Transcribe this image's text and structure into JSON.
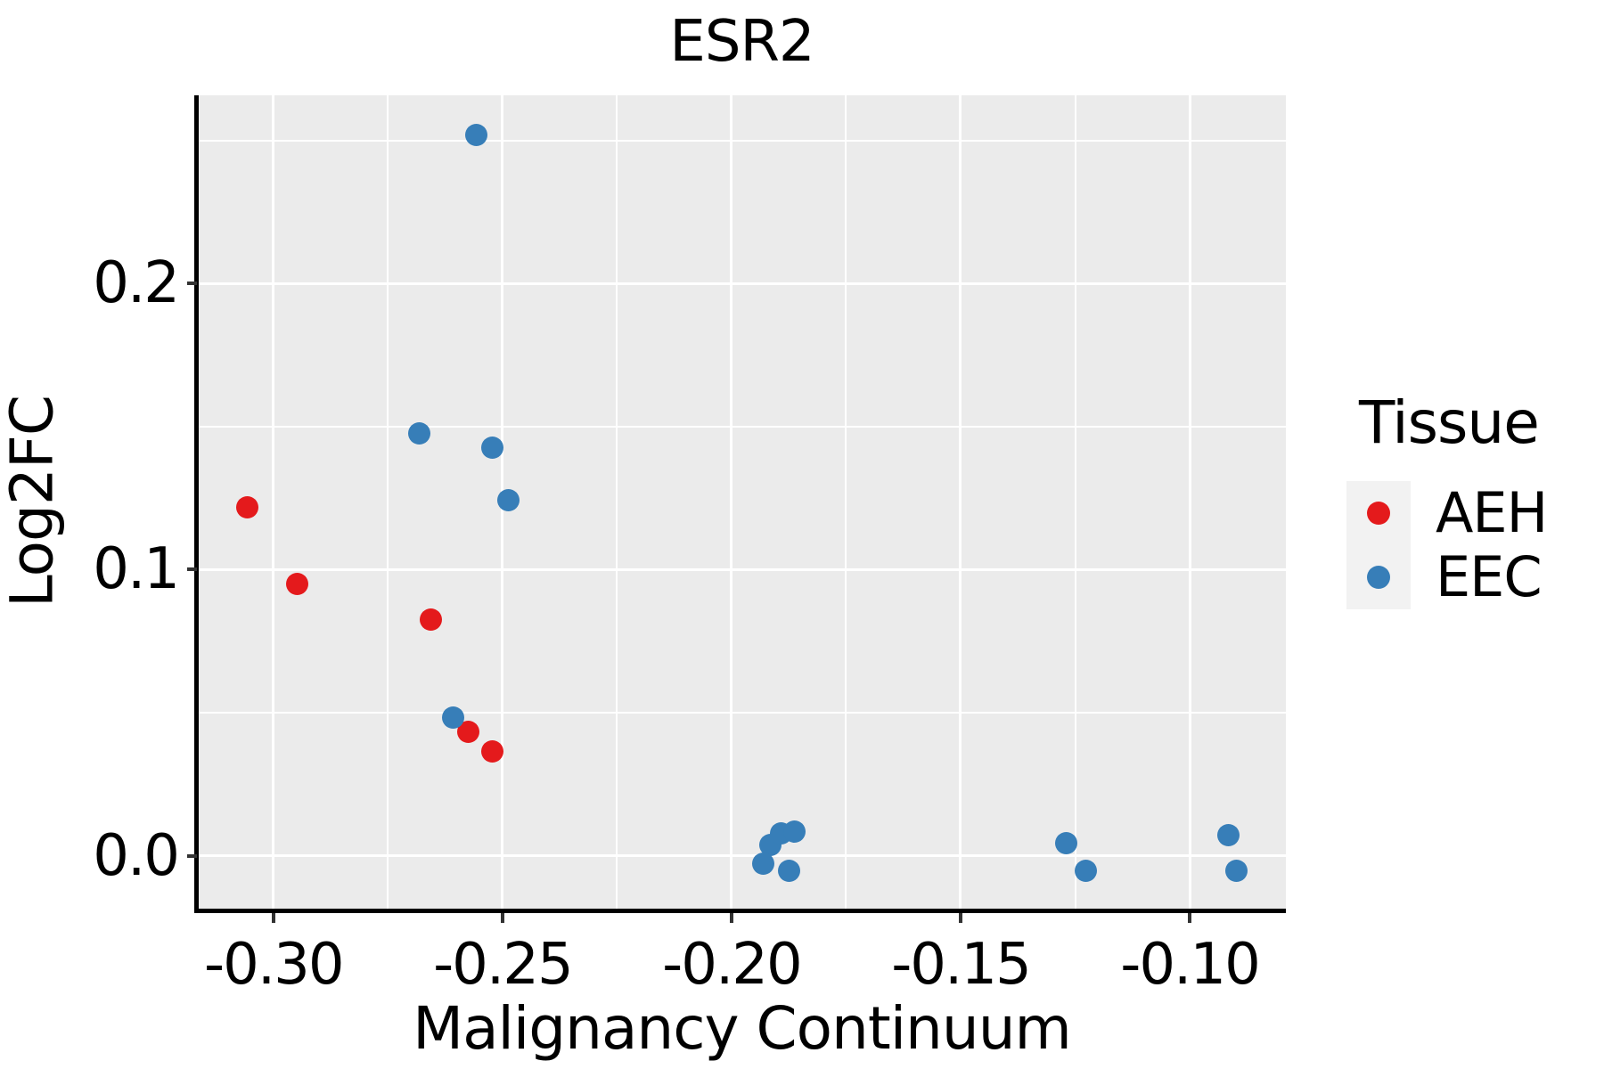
{
  "colors": {
    "panel_background": "#EBEBEB",
    "gridline": "#FFFFFF",
    "legend_key_background": "#F2F2F2",
    "axis_line": "#000000",
    "tick_mark": "#333333",
    "text": "#000000",
    "aeh": "#E41A1C",
    "eec": "#377EB8"
  },
  "legend": {
    "title": "Tissue",
    "items": [
      {
        "label": "AEH",
        "color": "#E41A1C"
      },
      {
        "label": "EEC",
        "color": "#377EB8"
      }
    ]
  },
  "chart_data": {
    "type": "scatter",
    "title": "ESR2",
    "xlabel": "Malignancy Continuum",
    "ylabel": "Log2FC",
    "xlim": [
      -0.3165,
      -0.079
    ],
    "ylim": [
      -0.0185,
      0.2658
    ],
    "grid": true,
    "legend_position": "right",
    "x_ticks": {
      "values": [
        -0.3,
        -0.25,
        -0.2,
        -0.15,
        -0.1
      ],
      "labels": [
        "-0.30",
        "-0.25",
        "-0.20",
        "-0.15",
        "-0.10"
      ]
    },
    "y_ticks": {
      "values": [
        0.0,
        0.1,
        0.2
      ],
      "labels": [
        "0.0",
        "0.1",
        "0.2"
      ]
    },
    "x_minor": [
      -0.275,
      -0.225,
      -0.175,
      -0.125
    ],
    "y_minor": [
      0.05,
      0.15,
      0.25
    ],
    "series": [
      {
        "name": "AEH",
        "color": "#E41A1C",
        "points": [
          [
            -0.3058,
            0.1218
          ],
          [
            -0.2949,
            0.0951
          ],
          [
            -0.2656,
            0.0827
          ],
          [
            -0.2574,
            0.0433
          ],
          [
            -0.2523,
            0.0365
          ]
        ]
      },
      {
        "name": "EEC",
        "color": "#377EB8",
        "points": [
          [
            -0.2558,
            0.2518
          ],
          [
            -0.2681,
            0.1476
          ],
          [
            -0.2523,
            0.1426
          ],
          [
            -0.2488,
            0.1243
          ],
          [
            -0.2607,
            0.0483
          ],
          [
            -0.1916,
            0.0039
          ],
          [
            -0.1891,
            0.0079
          ],
          [
            -0.1862,
            0.0085
          ],
          [
            -0.193,
            -0.0029
          ],
          [
            -0.1874,
            -0.0054
          ],
          [
            -0.127,
            0.0045
          ],
          [
            -0.1227,
            -0.0054
          ],
          [
            -0.0916,
            0.0073
          ],
          [
            -0.0897,
            -0.0054
          ]
        ]
      }
    ]
  }
}
